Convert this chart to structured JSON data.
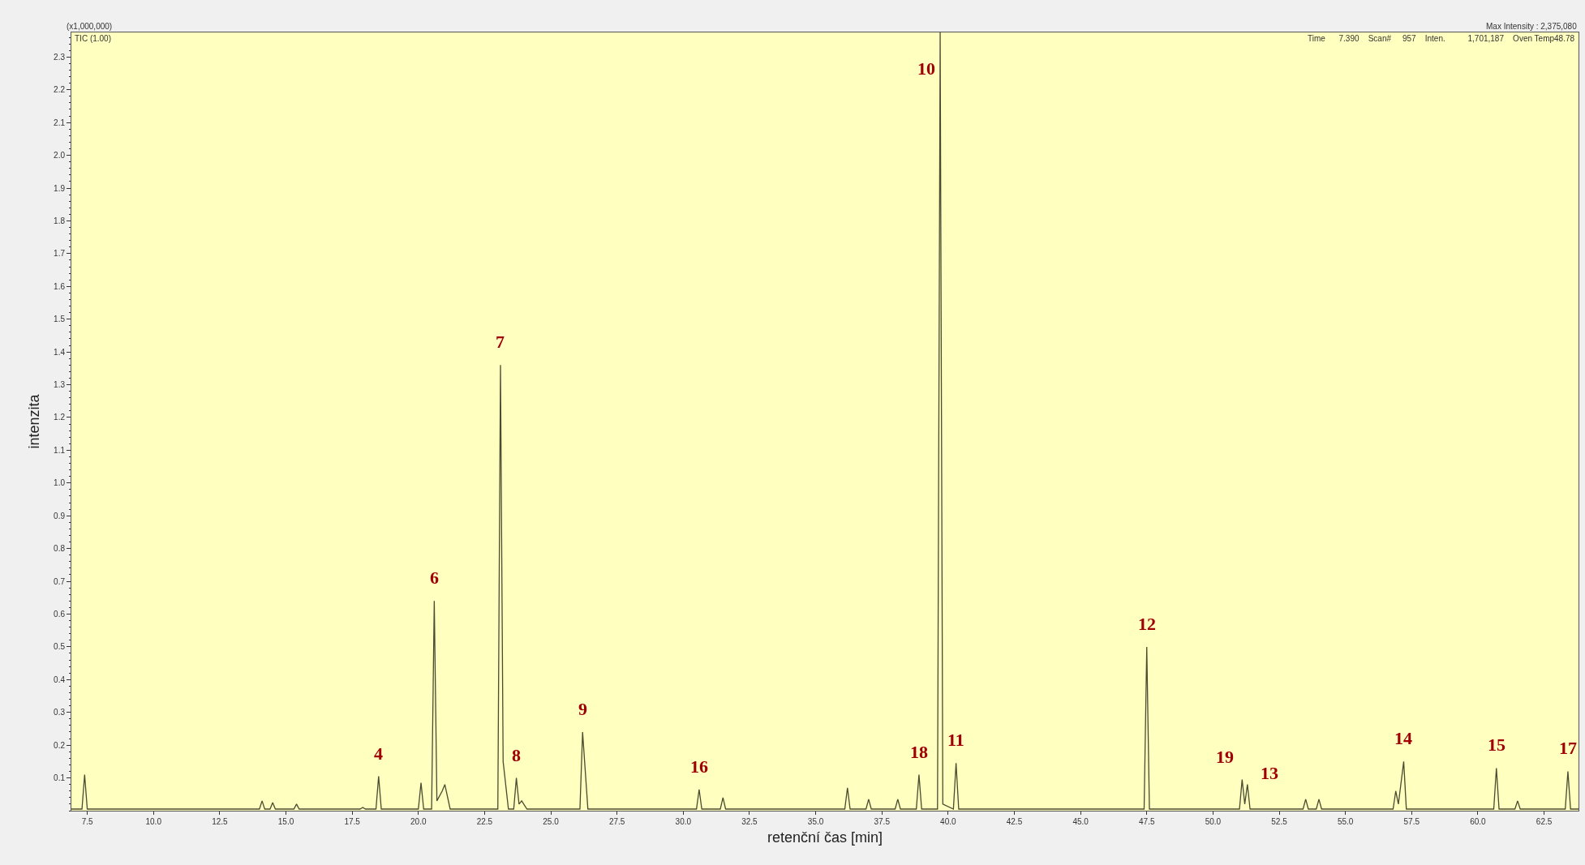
{
  "chart_data": {
    "type": "line",
    "xlabel": "retenční čas [min]",
    "ylabel": "intenzita",
    "x": [
      6.9,
      7.3,
      7.4,
      7.5,
      14.0,
      14.1,
      14.2,
      14.4,
      14.5,
      14.6,
      15.3,
      15.4,
      15.5,
      17.8,
      17.9,
      18.0,
      18.4,
      18.5,
      18.6,
      20.0,
      20.1,
      20.2,
      20.5,
      20.6,
      20.7,
      20.9,
      21.0,
      21.2,
      23.0,
      23.1,
      23.2,
      23.4,
      23.6,
      23.7,
      23.8,
      23.9,
      24.1,
      26.1,
      26.2,
      26.4,
      30.5,
      30.6,
      30.7,
      31.4,
      31.5,
      31.6,
      36.1,
      36.2,
      36.3,
      36.9,
      37.0,
      37.1,
      38.0,
      38.1,
      38.2,
      38.8,
      38.9,
      39.0,
      39.6,
      39.7,
      39.8,
      40.2,
      40.3,
      40.4,
      47.4,
      47.5,
      47.6,
      51.0,
      51.1,
      51.2,
      51.3,
      51.4,
      53.4,
      53.5,
      53.6,
      53.9,
      54.0,
      54.1,
      56.8,
      56.9,
      57.0,
      57.2,
      57.3,
      60.6,
      60.7,
      60.8,
      61.4,
      61.5,
      61.6,
      63.3,
      63.4,
      63.5,
      63.8
    ],
    "series": [
      {
        "color": "#4b4b30",
        "values": [
          0.005,
          0.005,
          0.11,
          0.005,
          0.005,
          0.03,
          0.005,
          0.005,
          0.025,
          0.005,
          0.005,
          0.02,
          0.005,
          0.005,
          0.01,
          0.005,
          0.005,
          0.105,
          0.005,
          0.005,
          0.085,
          0.005,
          0.005,
          0.64,
          0.03,
          0.06,
          0.08,
          0.005,
          0.005,
          1.36,
          0.15,
          0.005,
          0.005,
          0.1,
          0.02,
          0.03,
          0.005,
          0.005,
          0.24,
          0.005,
          0.005,
          0.065,
          0.005,
          0.005,
          0.04,
          0.005,
          0.005,
          0.07,
          0.005,
          0.005,
          0.035,
          0.005,
          0.005,
          0.035,
          0.005,
          0.005,
          0.11,
          0.005,
          0.005,
          2.375,
          0.02,
          0.005,
          0.145,
          0.005,
          0.005,
          0.5,
          0.005,
          0.005,
          0.095,
          0.02,
          0.08,
          0.005,
          0.005,
          0.035,
          0.005,
          0.005,
          0.035,
          0.005,
          0.005,
          0.06,
          0.02,
          0.15,
          0.005,
          0.005,
          0.13,
          0.005,
          0.005,
          0.03,
          0.005,
          0.005,
          0.12,
          0.005,
          0.005
        ]
      }
    ],
    "xlim": [
      6.9,
      63.8
    ],
    "ylim": [
      0,
      2.375
    ],
    "xticks": [
      7.5,
      {
        "value": 10,
        "label": "10.0"
      },
      12.5,
      {
        "value": 15,
        "label": "15.0"
      },
      17.5,
      {
        "value": 20,
        "label": "20.0"
      },
      22.5,
      {
        "value": 25,
        "label": "25.0"
      },
      27.5,
      {
        "value": 30,
        "label": "30.0"
      },
      32.5,
      {
        "value": 35,
        "label": "35.0"
      },
      37.5,
      {
        "value": 40,
        "label": "40.0"
      },
      42.5,
      {
        "value": 45,
        "label": "45.0"
      },
      47.5,
      {
        "value": 50,
        "label": "50.0"
      },
      52.5,
      {
        "value": 55,
        "label": "55.0"
      },
      57.5,
      {
        "value": 60,
        "label": "60.0"
      },
      62.5
    ],
    "yticks": [
      0.1,
      0.2,
      0.3,
      0.4,
      0.5,
      0.6,
      0.7,
      0.8,
      0.9,
      {
        "value": 1,
        "label": "1.0"
      },
      1.1,
      1.2,
      1.3,
      1.4,
      1.5,
      1.6,
      1.7,
      1.8,
      1.9,
      {
        "value": 2,
        "label": "2.0"
      },
      2.1,
      2.2,
      2.3
    ],
    "grid": false,
    "annotations": [
      {
        "text": "4",
        "x": 18.5,
        "y": 0.105
      },
      {
        "text": "6",
        "x": 20.6,
        "y": 0.64
      },
      {
        "text": "7",
        "x": 23.1,
        "y": 1.36
      },
      {
        "text": "8",
        "x": 23.7,
        "y": 0.1
      },
      {
        "text": "9",
        "x": 26.2,
        "y": 0.24
      },
      {
        "text": "16",
        "x": 30.6,
        "y": 0.065
      },
      {
        "text": "18",
        "x": 38.9,
        "y": 0.11
      },
      {
        "text": "10",
        "x": 39.7,
        "y": 2.375
      },
      {
        "text": "11",
        "x": 40.3,
        "y": 0.145
      },
      {
        "text": "12",
        "x": 47.5,
        "y": 0.5
      },
      {
        "text": "19",
        "x": 51.1,
        "y": 0.095
      },
      {
        "text": "13",
        "x": 51.3,
        "y": 0.08
      },
      {
        "text": "14",
        "x": 57.2,
        "y": 0.15
      },
      {
        "text": "15",
        "x": 60.7,
        "y": 0.13
      },
      {
        "text": "17",
        "x": 63.4,
        "y": 0.12
      },
      "(x1,000,000)",
      "TIC (1.00)",
      "Time      7.390    Scan#     957    Inten.          1,701,187    Oven Temp48.78",
      "Max Intensity : 2,375,080"
    ]
  }
}
